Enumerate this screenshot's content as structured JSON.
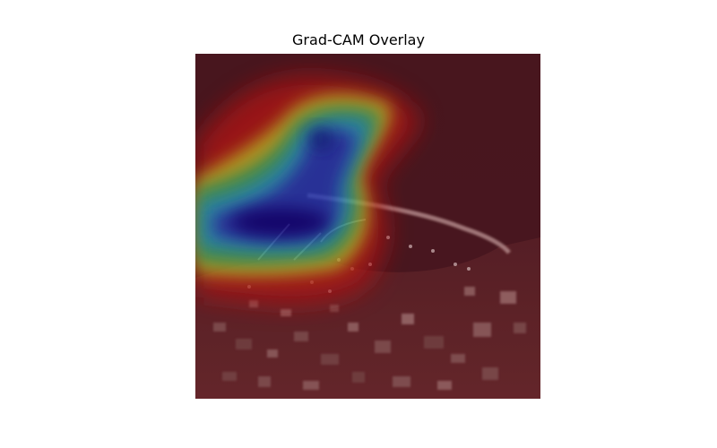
{
  "title": "Grad-CAM Overlay",
  "image": {
    "kind": "aerial-photo-with-heatmap",
    "description_colormap": "jet",
    "base_tint": "#4a1a20"
  },
  "colors": {
    "background": "#ffffff",
    "title_text": "#000000",
    "heat_low": "#5a1018",
    "heat_red": "#b01818",
    "heat_yellow": "#e0d020",
    "heat_green": "#40c060",
    "heat_cyan": "#20c0e0",
    "heat_blue": "#1040d0",
    "heat_darkblue": "#000090"
  }
}
